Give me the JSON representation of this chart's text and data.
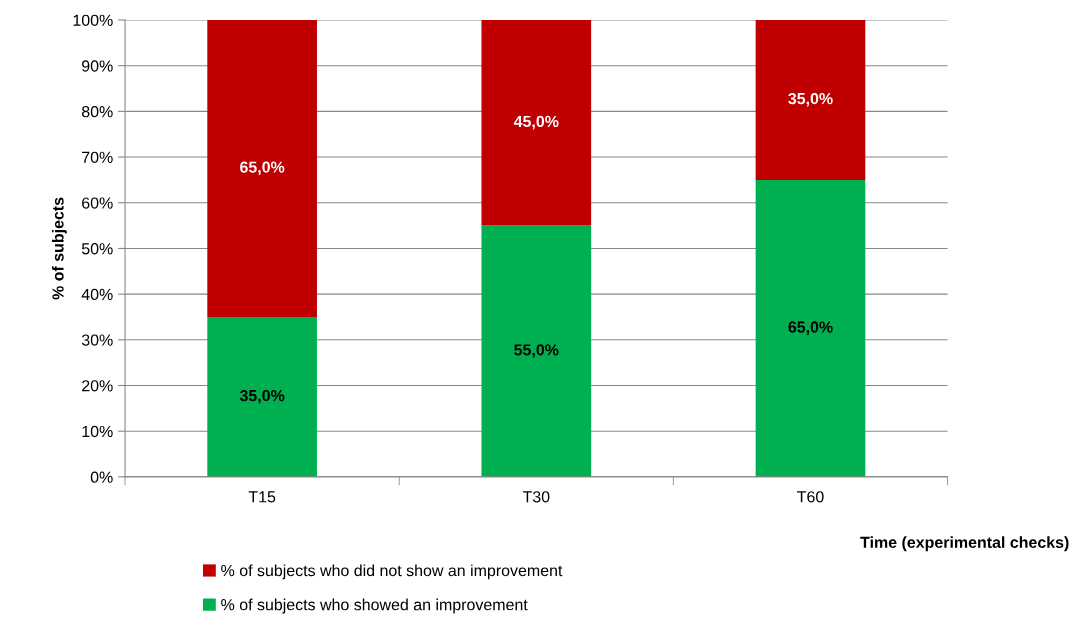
{
  "chart_data": {
    "type": "bar",
    "stacked": true,
    "ylabel": "% of subjects",
    "xlabel": "Time (experimental checks)",
    "categories": [
      "T15",
      "T30",
      "T60"
    ],
    "series": [
      {
        "name": "% of subjects who showed an improvement",
        "color": "#00b050",
        "values": [
          35,
          55,
          65
        ],
        "value_labels": [
          "35,0%",
          "55,0%",
          "65,0%"
        ]
      },
      {
        "name": "% of subjects who did not show an improvement",
        "color": "#c00000",
        "values": [
          65,
          45,
          35
        ],
        "value_labels": [
          "65,0%",
          "45,0%",
          "35,0%"
        ]
      }
    ],
    "ylim": [
      0,
      100
    ],
    "yticks": [
      {
        "value": 0,
        "label": "0%"
      },
      {
        "value": 10,
        "label": "10%"
      },
      {
        "value": 20,
        "label": "20%"
      },
      {
        "value": 30,
        "label": "30%"
      },
      {
        "value": 40,
        "label": "40%"
      },
      {
        "value": 50,
        "label": "50%"
      },
      {
        "value": 60,
        "label": "60%"
      },
      {
        "value": 70,
        "label": "70%"
      },
      {
        "value": 80,
        "label": "80%"
      },
      {
        "value": 90,
        "label": "90%"
      },
      {
        "value": 100,
        "label": "100%"
      }
    ],
    "grid": "y",
    "legend": "bottom"
  }
}
